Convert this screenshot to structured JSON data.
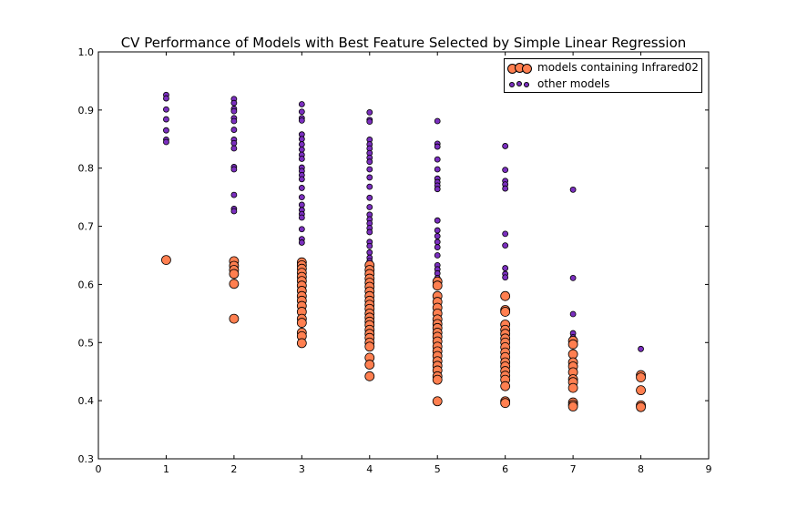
{
  "chart_data": {
    "type": "scatter",
    "title": "CV Performance of Models with Best Feature Selected by Simple Linear Regression",
    "xlabel": "",
    "ylabel": "",
    "xlim": [
      0,
      9
    ],
    "ylim": [
      0.3,
      1.0
    ],
    "xticks": [
      "0",
      "1",
      "2",
      "3",
      "4",
      "5",
      "6",
      "7",
      "8",
      "9"
    ],
    "yticks": [
      "0.3",
      "0.4",
      "0.5",
      "0.6",
      "0.7",
      "0.8",
      "0.9",
      "1.0"
    ],
    "grid": false,
    "legend_position": "top-right",
    "series": [
      {
        "name": "models containing Infrared02",
        "color": "#ff7f50",
        "marker_size": "large",
        "points": [
          [
            1,
            0.642
          ],
          [
            2,
            0.64
          ],
          [
            2,
            0.632
          ],
          [
            2,
            0.625
          ],
          [
            2,
            0.618
          ],
          [
            2,
            0.601
          ],
          [
            2,
            0.541
          ],
          [
            3,
            0.638
          ],
          [
            3,
            0.633
          ],
          [
            3,
            0.627
          ],
          [
            3,
            0.62
          ],
          [
            3,
            0.613
          ],
          [
            3,
            0.606
          ],
          [
            3,
            0.598
          ],
          [
            3,
            0.589
          ],
          [
            3,
            0.58
          ],
          [
            3,
            0.572
          ],
          [
            3,
            0.563
          ],
          [
            3,
            0.553
          ],
          [
            3,
            0.541
          ],
          [
            3,
            0.534
          ],
          [
            3,
            0.517
          ],
          [
            3,
            0.511
          ],
          [
            3,
            0.499
          ],
          [
            4,
            0.633
          ],
          [
            4,
            0.625
          ],
          [
            4,
            0.618
          ],
          [
            4,
            0.61
          ],
          [
            4,
            0.603
          ],
          [
            4,
            0.596
          ],
          [
            4,
            0.588
          ],
          [
            4,
            0.58
          ],
          [
            4,
            0.572
          ],
          [
            4,
            0.565
          ],
          [
            4,
            0.558
          ],
          [
            4,
            0.55
          ],
          [
            4,
            0.543
          ],
          [
            4,
            0.536
          ],
          [
            4,
            0.53
          ],
          [
            4,
            0.522
          ],
          [
            4,
            0.515
          ],
          [
            4,
            0.508
          ],
          [
            4,
            0.5
          ],
          [
            4,
            0.493
          ],
          [
            4,
            0.474
          ],
          [
            4,
            0.462
          ],
          [
            4,
            0.442
          ],
          [
            5,
            0.605
          ],
          [
            5,
            0.598
          ],
          [
            5,
            0.58
          ],
          [
            5,
            0.57
          ],
          [
            5,
            0.56
          ],
          [
            5,
            0.55
          ],
          [
            5,
            0.54
          ],
          [
            5,
            0.532
          ],
          [
            5,
            0.525
          ],
          [
            5,
            0.517
          ],
          [
            5,
            0.51
          ],
          [
            5,
            0.502
          ],
          [
            5,
            0.493
          ],
          [
            5,
            0.485
          ],
          [
            5,
            0.477
          ],
          [
            5,
            0.468
          ],
          [
            5,
            0.46
          ],
          [
            5,
            0.452
          ],
          [
            5,
            0.442
          ],
          [
            5,
            0.436
          ],
          [
            5,
            0.399
          ],
          [
            6,
            0.58
          ],
          [
            6,
            0.556
          ],
          [
            6,
            0.553
          ],
          [
            6,
            0.531
          ],
          [
            6,
            0.522
          ],
          [
            6,
            0.515
          ],
          [
            6,
            0.507
          ],
          [
            6,
            0.5
          ],
          [
            6,
            0.492
          ],
          [
            6,
            0.483
          ],
          [
            6,
            0.475
          ],
          [
            6,
            0.466
          ],
          [
            6,
            0.459
          ],
          [
            6,
            0.451
          ],
          [
            6,
            0.443
          ],
          [
            6,
            0.436
          ],
          [
            6,
            0.425
          ],
          [
            6,
            0.399
          ],
          [
            6,
            0.396
          ],
          [
            7,
            0.503
          ],
          [
            7,
            0.497
          ],
          [
            7,
            0.48
          ],
          [
            7,
            0.466
          ],
          [
            7,
            0.459
          ],
          [
            7,
            0.449
          ],
          [
            7,
            0.437
          ],
          [
            7,
            0.432
          ],
          [
            7,
            0.422
          ],
          [
            7,
            0.397
          ],
          [
            7,
            0.393
          ],
          [
            7,
            0.39
          ],
          [
            8,
            0.444
          ],
          [
            8,
            0.44
          ],
          [
            8,
            0.418
          ],
          [
            8,
            0.392
          ],
          [
            8,
            0.389
          ]
        ]
      },
      {
        "name": "other models",
        "color": "#7b2fbf",
        "marker_size": "small",
        "points": [
          [
            1,
            0.926
          ],
          [
            1,
            0.92
          ],
          [
            1,
            0.901
          ],
          [
            1,
            0.884
          ],
          [
            1,
            0.865
          ],
          [
            1,
            0.849
          ],
          [
            1,
            0.845
          ],
          [
            2,
            0.919
          ],
          [
            2,
            0.912
          ],
          [
            2,
            0.902
          ],
          [
            2,
            0.898
          ],
          [
            2,
            0.886
          ],
          [
            2,
            0.881
          ],
          [
            2,
            0.866
          ],
          [
            2,
            0.849
          ],
          [
            2,
            0.843
          ],
          [
            2,
            0.834
          ],
          [
            2,
            0.802
          ],
          [
            2,
            0.798
          ],
          [
            2,
            0.754
          ],
          [
            2,
            0.73
          ],
          [
            2,
            0.726
          ],
          [
            3,
            0.91
          ],
          [
            3,
            0.897
          ],
          [
            3,
            0.886
          ],
          [
            3,
            0.882
          ],
          [
            3,
            0.858
          ],
          [
            3,
            0.85
          ],
          [
            3,
            0.841
          ],
          [
            3,
            0.832
          ],
          [
            3,
            0.823
          ],
          [
            3,
            0.816
          ],
          [
            3,
            0.801
          ],
          [
            3,
            0.795
          ],
          [
            3,
            0.788
          ],
          [
            3,
            0.781
          ],
          [
            3,
            0.766
          ],
          [
            3,
            0.75
          ],
          [
            3,
            0.737
          ],
          [
            3,
            0.728
          ],
          [
            3,
            0.721
          ],
          [
            3,
            0.715
          ],
          [
            3,
            0.695
          ],
          [
            3,
            0.678
          ],
          [
            3,
            0.672
          ],
          [
            4,
            0.896
          ],
          [
            4,
            0.883
          ],
          [
            4,
            0.88
          ],
          [
            4,
            0.849
          ],
          [
            4,
            0.841
          ],
          [
            4,
            0.834
          ],
          [
            4,
            0.826
          ],
          [
            4,
            0.818
          ],
          [
            4,
            0.811
          ],
          [
            4,
            0.798
          ],
          [
            4,
            0.784
          ],
          [
            4,
            0.768
          ],
          [
            4,
            0.749
          ],
          [
            4,
            0.733
          ],
          [
            4,
            0.72
          ],
          [
            4,
            0.712
          ],
          [
            4,
            0.705
          ],
          [
            4,
            0.697
          ],
          [
            4,
            0.69
          ],
          [
            4,
            0.673
          ],
          [
            4,
            0.666
          ],
          [
            4,
            0.655
          ],
          [
            4,
            0.646
          ],
          [
            4,
            0.64
          ],
          [
            5,
            0.881
          ],
          [
            5,
            0.842
          ],
          [
            5,
            0.837
          ],
          [
            5,
            0.815
          ],
          [
            5,
            0.798
          ],
          [
            5,
            0.782
          ],
          [
            5,
            0.776
          ],
          [
            5,
            0.77
          ],
          [
            5,
            0.764
          ],
          [
            5,
            0.71
          ],
          [
            5,
            0.693
          ],
          [
            5,
            0.683
          ],
          [
            5,
            0.673
          ],
          [
            5,
            0.664
          ],
          [
            5,
            0.65
          ],
          [
            5,
            0.633
          ],
          [
            5,
            0.626
          ],
          [
            5,
            0.619
          ],
          [
            5,
            0.611
          ],
          [
            6,
            0.838
          ],
          [
            6,
            0.797
          ],
          [
            6,
            0.778
          ],
          [
            6,
            0.772
          ],
          [
            6,
            0.765
          ],
          [
            6,
            0.687
          ],
          [
            6,
            0.667
          ],
          [
            6,
            0.628
          ],
          [
            6,
            0.618
          ],
          [
            6,
            0.612
          ],
          [
            7,
            0.763
          ],
          [
            7,
            0.611
          ],
          [
            7,
            0.549
          ],
          [
            7,
            0.516
          ],
          [
            7,
            0.509
          ],
          [
            8,
            0.489
          ]
        ]
      }
    ]
  }
}
